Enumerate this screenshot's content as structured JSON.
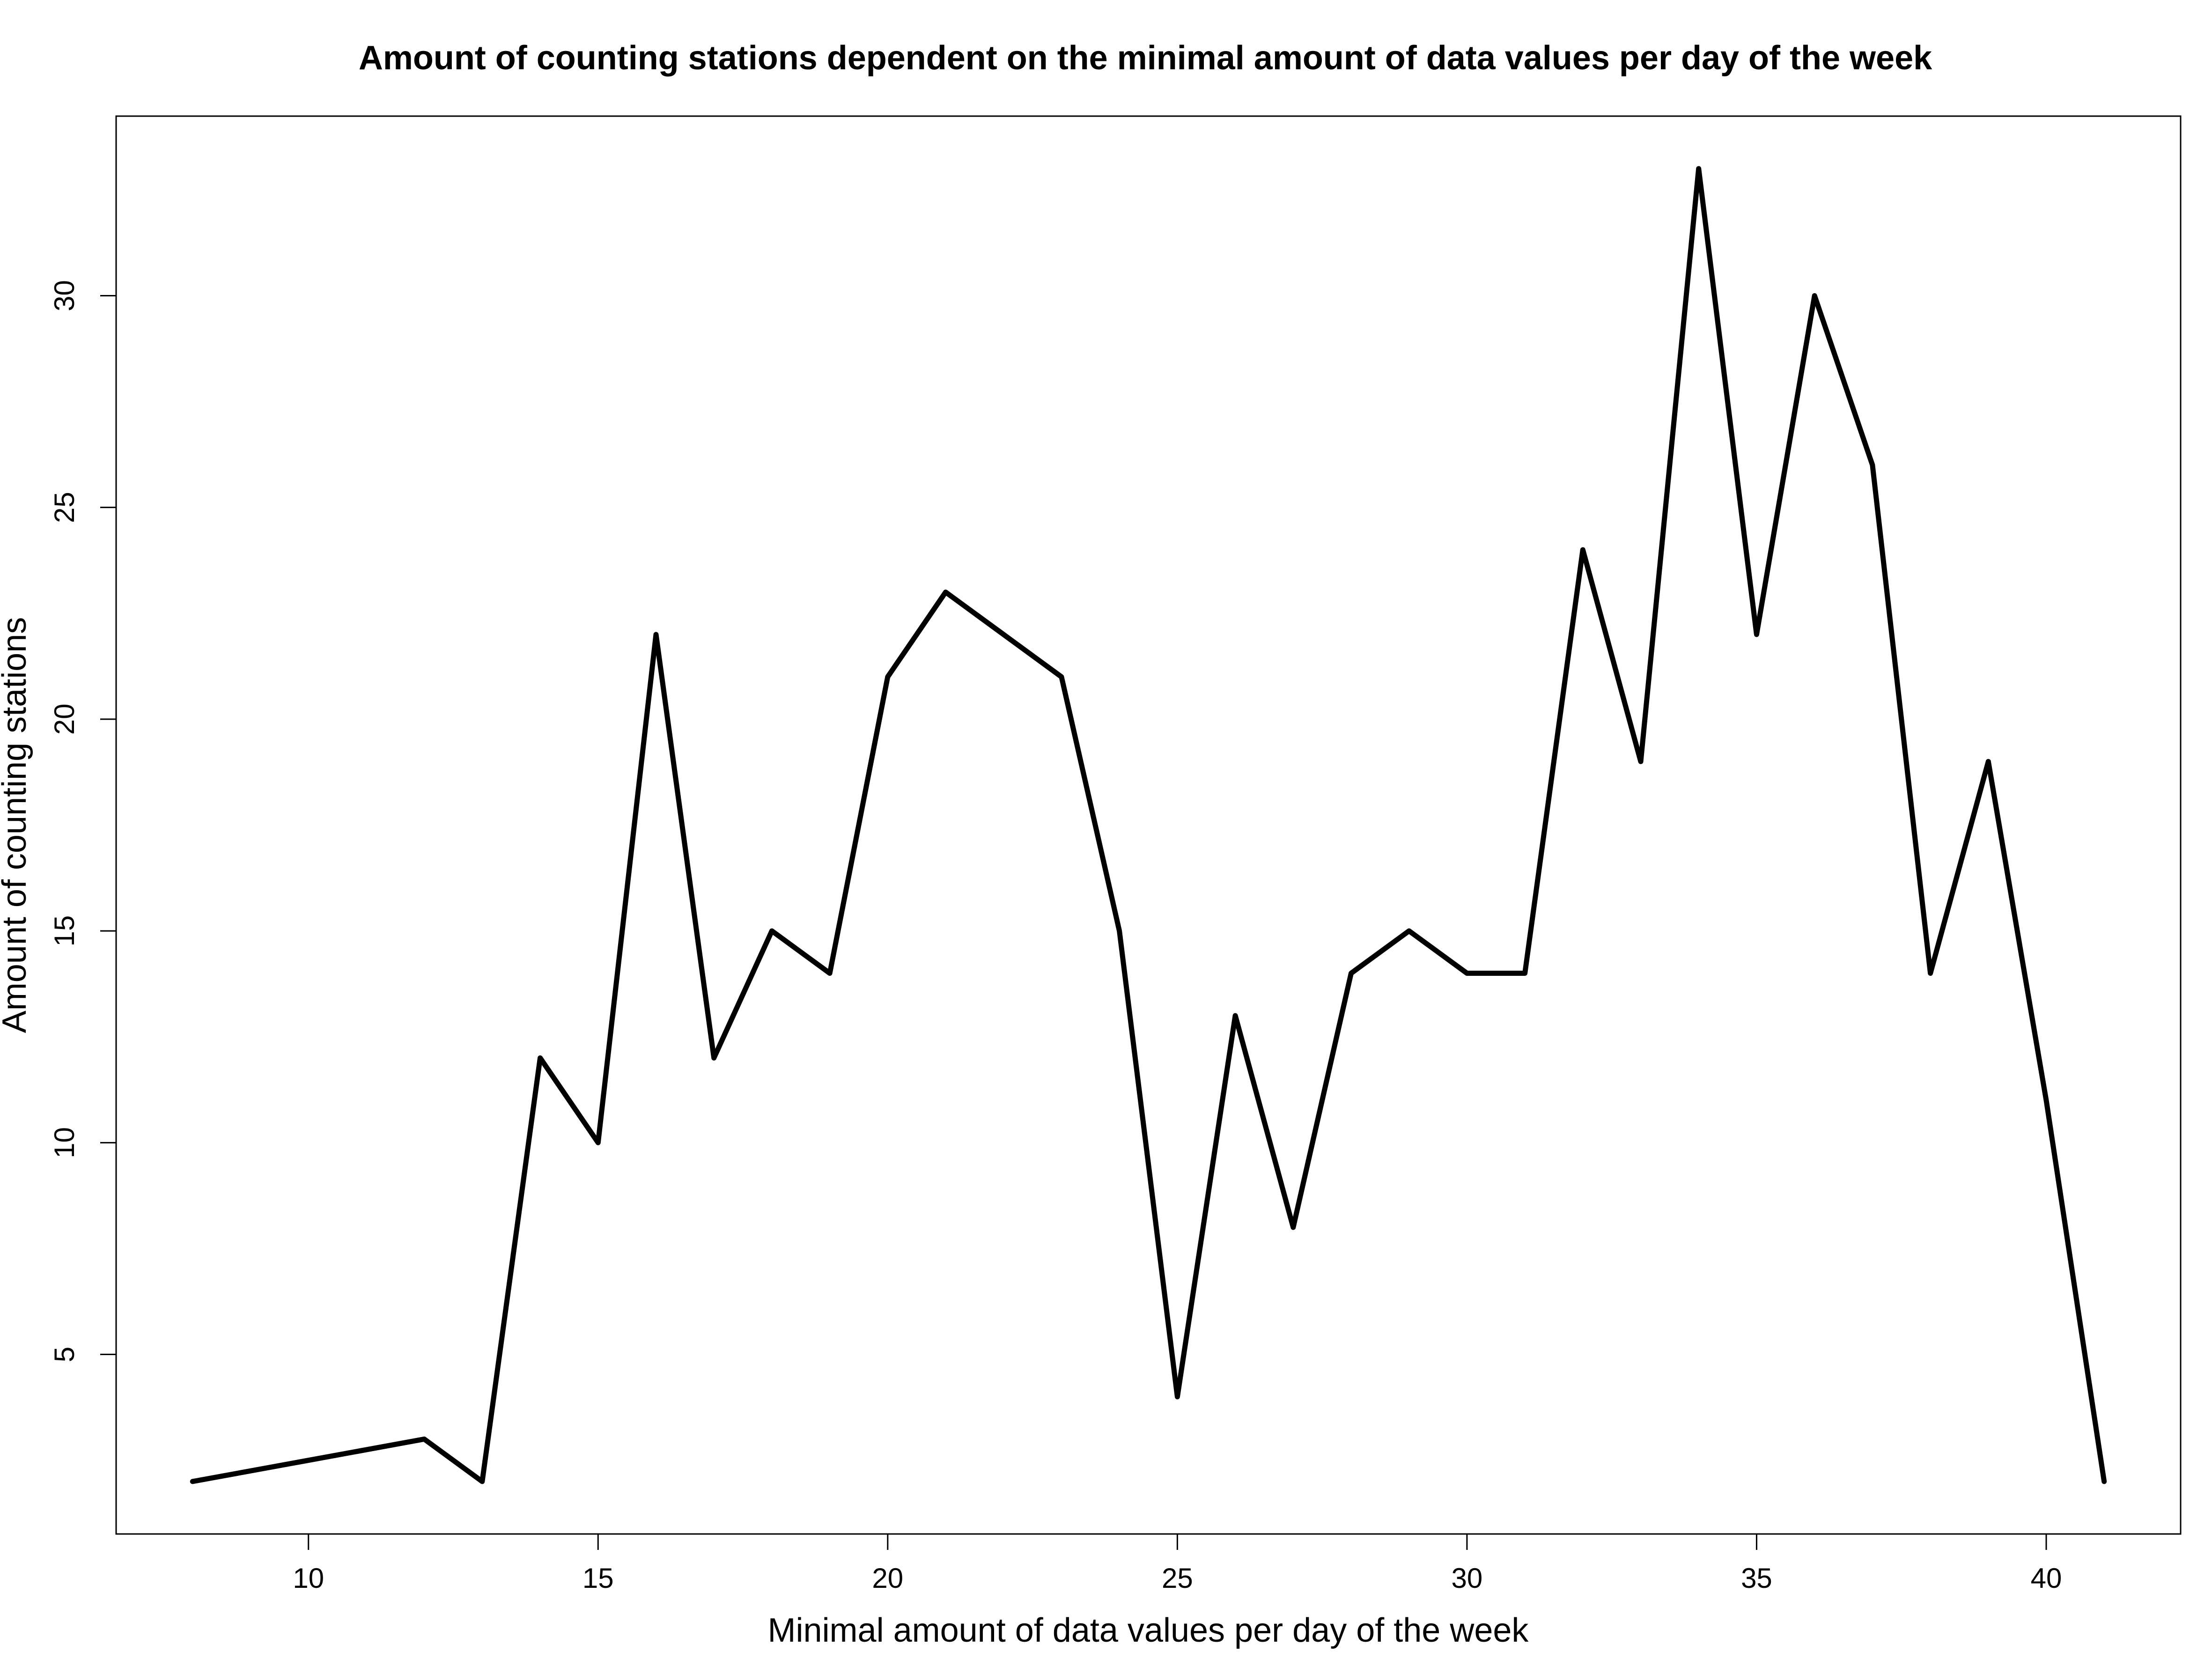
{
  "chart_data": {
    "type": "line",
    "title": "Amount of counting stations dependent on the minimal amount of data values per day of the week",
    "xlabel": "Minimal amount of data values per day of the week",
    "ylabel": "Amount of counting stations",
    "x": [
      8,
      12,
      13,
      14,
      15,
      16,
      17,
      18,
      19,
      20,
      21,
      22,
      23,
      24,
      25,
      26,
      27,
      28,
      29,
      30,
      31,
      32,
      33,
      34,
      35,
      36,
      37,
      38,
      39,
      40,
      41
    ],
    "series": [
      {
        "values": [
          2,
          3,
          2,
          12,
          10,
          22,
          12,
          15,
          14,
          21,
          23,
          22,
          21,
          15,
          4,
          13,
          8,
          14,
          15,
          14,
          14,
          24,
          19,
          33,
          22,
          30,
          26,
          14,
          19,
          11,
          2
        ],
        "color": "#000000"
      }
    ],
    "xlim": [
      6.68,
      42.32
    ],
    "ylim": [
      0.76,
      34.24
    ],
    "xticks": [
      "10",
      "15",
      "20",
      "25",
      "30",
      "35",
      "40"
    ],
    "yticks": [
      "5",
      "10",
      "15",
      "20",
      "25",
      "30"
    ],
    "grid": false,
    "legend": "none"
  }
}
